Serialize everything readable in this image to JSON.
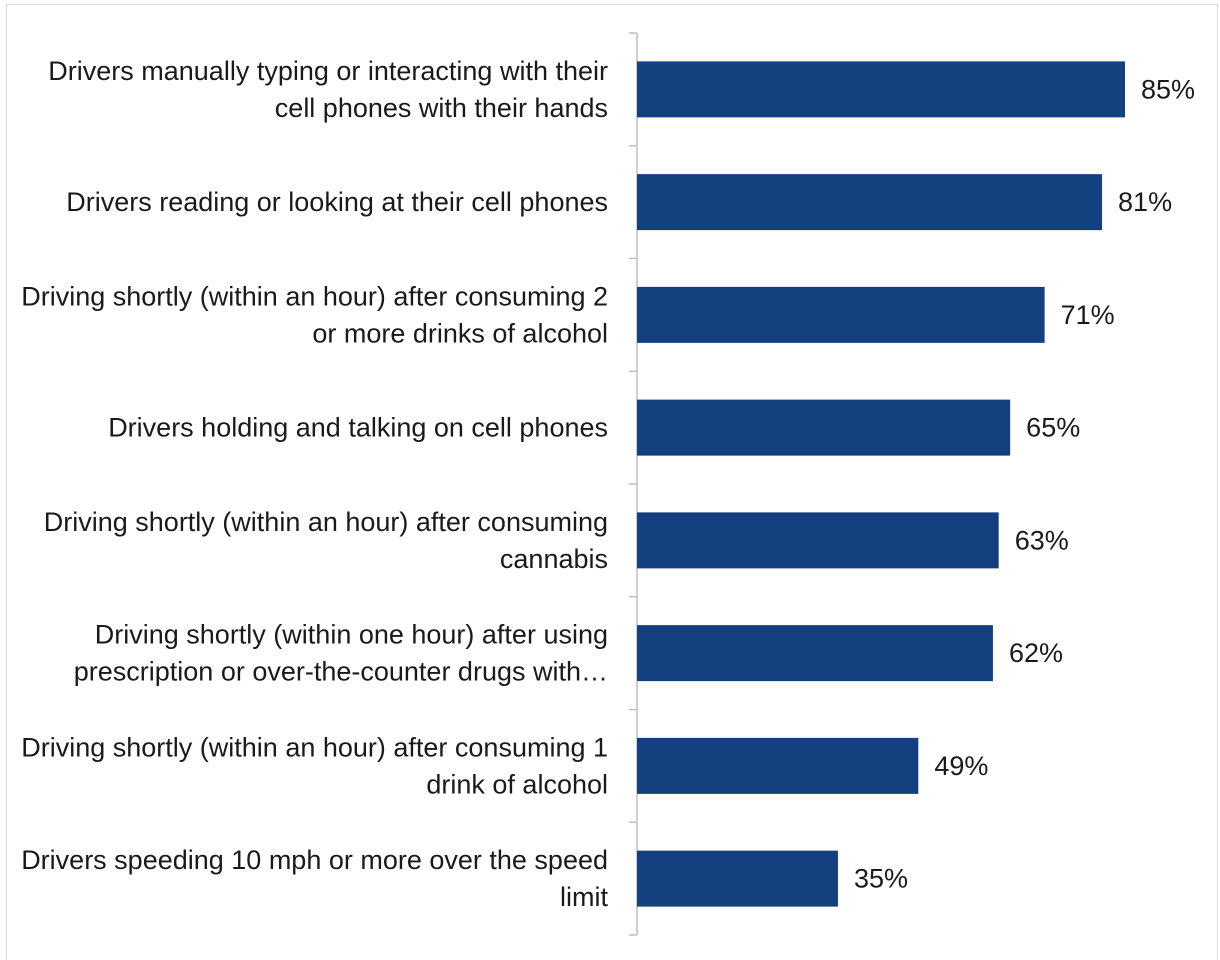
{
  "chart_data": {
    "type": "bar",
    "orientation": "horizontal",
    "categories": [
      [
        "Drivers manually typing or interacting with their",
        "cell phones with their hands"
      ],
      [
        "Drivers reading or looking at their cell phones"
      ],
      [
        "Driving shortly (within an hour) after consuming 2",
        "or more drinks of alcohol"
      ],
      [
        "Drivers holding and talking on cell phones"
      ],
      [
        "Driving shortly (within an hour) after consuming",
        "cannabis"
      ],
      [
        "Driving shortly (within one hour) after using",
        "prescription or over-the-counter drugs with…"
      ],
      [
        "Driving shortly (within an hour) after consuming 1",
        "drink of alcohol"
      ],
      [
        "Drivers speeding 10 mph or more over the speed",
        "limit"
      ]
    ],
    "values": [
      85,
      81,
      71,
      65,
      63,
      62,
      49,
      35
    ],
    "value_labels": [
      "85%",
      "81%",
      "71%",
      "65%",
      "63%",
      "62%",
      "49%",
      "35%"
    ],
    "value_unit": "%",
    "xlim": [
      0,
      100
    ],
    "grid": false,
    "legend": "none",
    "colors": {
      "bar": "#15407f",
      "axis": "#bfbfbf",
      "text": "#1a1a1a",
      "frame": "#d9d9d9"
    }
  }
}
